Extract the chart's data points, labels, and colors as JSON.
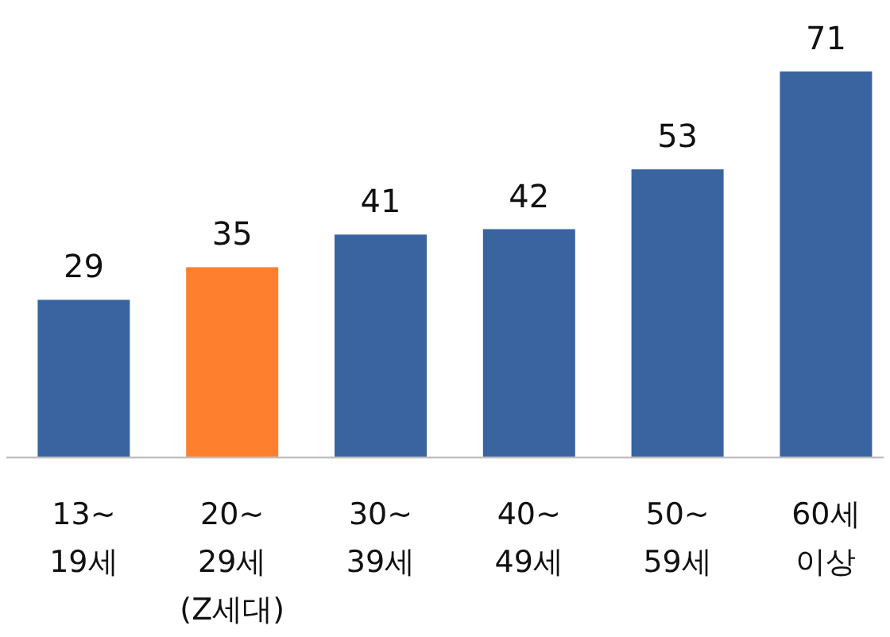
{
  "chart_data": {
    "type": "bar",
    "categories": [
      "13~ 19세",
      "20~ 29세 (Z세대)",
      "30~ 39세",
      "40~ 49세",
      "50~ 59세",
      "60세 이상"
    ],
    "values": [
      29,
      35,
      41,
      42,
      53,
      71
    ],
    "colors": [
      "#3a64a0",
      "#fe7f2d",
      "#3a64a0",
      "#3a64a0",
      "#3a64a0",
      "#3a64a0"
    ],
    "data_labels": true
  }
}
